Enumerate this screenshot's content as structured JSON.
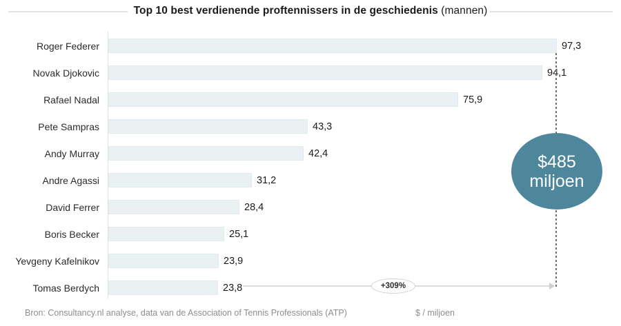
{
  "title": {
    "main": "Top 10 best verdienende proftennissers in de geschiedenis",
    "suffix": " (mannen)"
  },
  "chart_data": {
    "type": "bar",
    "orientation": "horizontal",
    "title": "Top 10 best verdienende proftennissers in de geschiedenis (mannen)",
    "xlabel": "$ / miljoen",
    "ylabel": "",
    "xlim": [
      0,
      100
    ],
    "grid": false,
    "legend": "none",
    "categories": [
      "Roger Federer",
      "Novak Djokovic",
      "Rafael Nadal",
      "Pete Sampras",
      "Andy Murray",
      "Andre Agassi",
      "David Ferrer",
      "Boris Becker",
      "Yevgeny Kafelnikov",
      "Tomas Berdych"
    ],
    "values": [
      97.3,
      94.1,
      75.9,
      43.3,
      42.4,
      31.2,
      28.4,
      25.1,
      23.9,
      23.8
    ],
    "value_labels": [
      "97,3",
      "94,1",
      "75,9",
      "43,3",
      "42,4",
      "31,2",
      "28,4",
      "25,1",
      "23,9",
      "23,8"
    ],
    "annotations": {
      "total_bubble": {
        "line1": "$485",
        "line2": "miljoen",
        "color": "#4e879b"
      },
      "growth_label": "+309%",
      "reference_line": {
        "at_value": 97.3,
        "style": "dashed"
      }
    },
    "colors": {
      "bar_fill": "#e9f1f3",
      "bubble_fill": "#4e879b",
      "dashed_line": "#6e6e6e",
      "annotation_line": "#dcdcdc"
    }
  },
  "footer": {
    "source": "Bron: Consultancy.nl analyse,  data van de Association of Tennis Professionals (ATP)",
    "unit": "$ / miljoen"
  }
}
